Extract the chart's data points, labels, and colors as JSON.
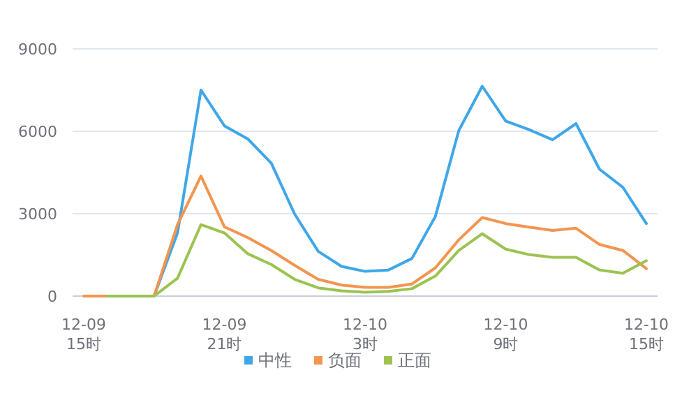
{
  "chart_data": {
    "type": "line",
    "categories": [
      "12-09\n15时",
      null,
      null,
      null,
      null,
      null,
      "12-09\n21时",
      null,
      null,
      null,
      null,
      null,
      "12-10\n3时",
      null,
      null,
      null,
      null,
      null,
      "12-10\n9时",
      null,
      null,
      null,
      null,
      null,
      "12-10\n15时"
    ],
    "series": [
      {
        "name": "中性",
        "color": "#3fa7e8",
        "values": [
          null,
          null,
          null,
          0,
          2300,
          7500,
          6200,
          5720,
          4840,
          2980,
          1630,
          1080,
          900,
          950,
          1370,
          2900,
          6030,
          7640,
          6370,
          6060,
          5690,
          6280,
          4620,
          3960,
          2640
        ]
      },
      {
        "name": "负面",
        "color": "#f3954f",
        "values": [
          0,
          0,
          0,
          0,
          2600,
          4370,
          2520,
          2130,
          1660,
          1120,
          610,
          400,
          320,
          320,
          440,
          1030,
          2050,
          2860,
          2640,
          2510,
          2390,
          2470,
          1880,
          1660,
          1000
        ]
      },
      {
        "name": "正面",
        "color": "#9cc350",
        "values": [
          null,
          0,
          0,
          0,
          650,
          2600,
          2300,
          1540,
          1150,
          610,
          300,
          190,
          140,
          170,
          270,
          730,
          1660,
          2270,
          1710,
          1510,
          1410,
          1410,
          950,
          830,
          1290
        ]
      }
    ],
    "ylim": [
      0,
      9000
    ],
    "yticks": [
      0,
      3000,
      6000,
      9000
    ],
    "grid": "y",
    "legend": "bottom",
    "marker": "none",
    "line_style": "solid"
  }
}
